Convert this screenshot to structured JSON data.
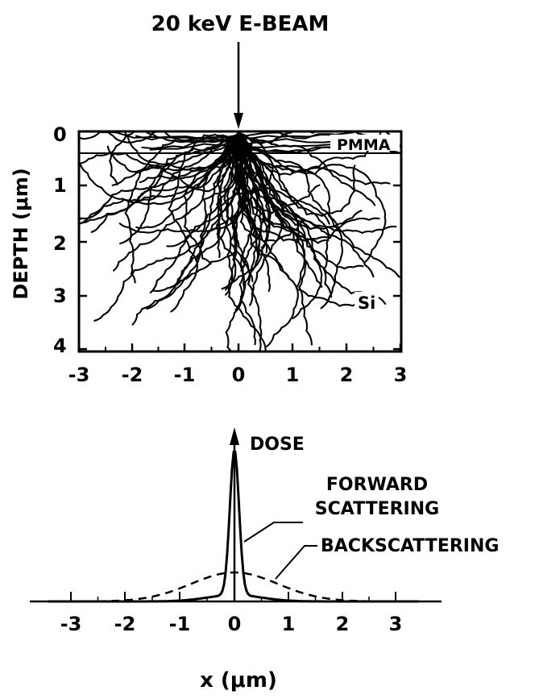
{
  "beam_label": "20 keV E-BEAM",
  "top_plot": {
    "ylabel": "DEPTH (μm)",
    "y_ticks": [
      "0",
      "1",
      "2",
      "3",
      "4"
    ],
    "x_ticks": [
      "-3",
      "-2",
      "-1",
      "0",
      "1",
      "2",
      "3"
    ],
    "layer_labels": {
      "resist": "PMMA",
      "substrate": "Si"
    }
  },
  "bottom_plot": {
    "y_axis_label": "DOSE",
    "x_ticks": [
      "-3",
      "-2",
      "-1",
      "0",
      "1",
      "2",
      "3"
    ],
    "xlabel": "x (μm)",
    "annotations": {
      "forward": [
        "FORWARD",
        "SCATTERING"
      ],
      "back": "BACKSCATTERING"
    }
  },
  "colors": {
    "ink": "#000000",
    "paper": "#ffffff"
  }
}
